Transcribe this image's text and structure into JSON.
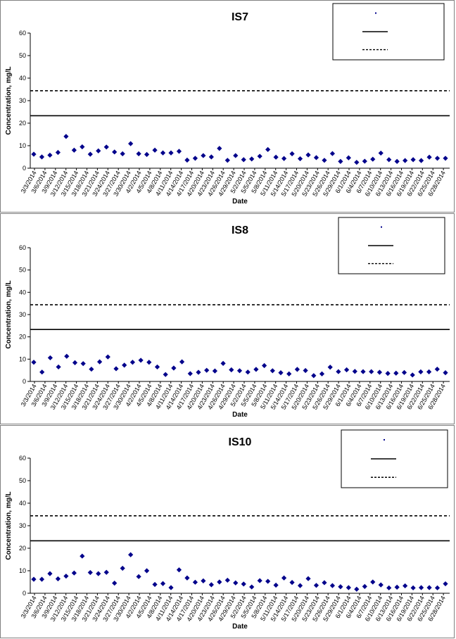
{
  "chart_data": [
    {
      "type": "scatter",
      "title": "IS7",
      "xlabel": "Date",
      "ylabel": "Concentration, mg/L",
      "ylim": [
        0,
        60
      ],
      "yticks": [
        0,
        10,
        20,
        30,
        40,
        50,
        60
      ],
      "xtick_labels": [
        "3/3/2014",
        "3/6/2014",
        "3/9/2014",
        "3/12/2014",
        "3/15/2014",
        "3/18/2014",
        "3/21/2014",
        "3/24/2014",
        "3/27/2014",
        "3/30/2014",
        "4/2/2014",
        "4/5/2014",
        "4/8/2014",
        "4/11/2014",
        "4/14/2014",
        "4/17/2014",
        "4/20/2014",
        "4/23/2014",
        "4/26/2014",
        "4/29/2014",
        "5/2/2014",
        "5/5/2014",
        "5/8/2014",
        "5/11/2014",
        "5/14/2014",
        "5/17/2014",
        "5/20/2014",
        "5/23/2014",
        "5/26/2014",
        "5/29/2014",
        "6/1/2014",
        "6/4/2014",
        "6/7/2014",
        "6/10/2014",
        "6/13/2014",
        "6/16/2014",
        "6/19/2014",
        "6/22/2014",
        "6/25/2014",
        "6/28/2014"
      ],
      "reference_lines": [
        {
          "style": "solid",
          "value": 23.3
        },
        {
          "style": "dashed",
          "value": 34.4
        }
      ],
      "legend": {
        "placement": "top-right",
        "entries": [
          "",
          "",
          ""
        ]
      },
      "series": [
        {
          "marker": "diamond",
          "color": "#00008b",
          "values": [
            6.2,
            5.0,
            5.8,
            7.0,
            14.1,
            8.0,
            9.5,
            6.2,
            7.7,
            9.4,
            7.2,
            6.4,
            10.9,
            6.4,
            6.1,
            8.0,
            6.8,
            6.8,
            7.5,
            3.6,
            4.4,
            5.6,
            5.0,
            8.8,
            3.5,
            5.6,
            3.8,
            4.1,
            5.3,
            8.3,
            4.9,
            4.3,
            6.4,
            4.2,
            5.9,
            4.7,
            3.5,
            6.5,
            3.0,
            4.6,
            2.6,
            3.1,
            4.0,
            6.7,
            3.8,
            3.0,
            3.4,
            3.8,
            3.4,
            4.9,
            4.4,
            4.4
          ]
        }
      ]
    },
    {
      "type": "scatter",
      "title": "IS8",
      "xlabel": "Date",
      "ylabel": "Concentration, mg/L",
      "ylim": [
        0,
        60
      ],
      "yticks": [
        0,
        10,
        20,
        30,
        40,
        50,
        60
      ],
      "xtick_labels": [
        "3/3/2014",
        "3/6/2014",
        "3/9/2014",
        "3/12/2014",
        "3/15/2014",
        "3/18/2014",
        "3/21/2014",
        "3/24/2014",
        "3/27/2014",
        "3/30/2014",
        "4/2/2014",
        "4/5/2014",
        "4/8/2014",
        "4/11/2014",
        "4/14/2014",
        "4/17/2014",
        "4/20/2014",
        "4/23/2014",
        "4/26/2014",
        "4/29/2014",
        "5/2/2014",
        "5/5/2014",
        "5/8/2014",
        "5/11/2014",
        "5/14/2014",
        "5/17/2014",
        "5/20/2014",
        "5/23/2014",
        "5/26/2014",
        "5/29/2014",
        "6/1/2014",
        "6/4/2014",
        "6/7/2014",
        "6/10/2014",
        "6/13/2014",
        "6/16/2014",
        "6/19/2014",
        "6/22/2014",
        "6/25/2014",
        "6/28/2014"
      ],
      "reference_lines": [
        {
          "style": "solid",
          "value": 23.3
        },
        {
          "style": "dashed",
          "value": 34.4
        }
      ],
      "legend": {
        "placement": "top-right",
        "entries": [
          "",
          "",
          ""
        ]
      },
      "series": [
        {
          "marker": "diamond",
          "color": "#00008b",
          "values": [
            8.6,
            4.2,
            10.6,
            6.5,
            11.3,
            8.4,
            8.0,
            5.5,
            8.8,
            11.0,
            5.7,
            7.3,
            8.6,
            9.5,
            8.6,
            6.5,
            3.1,
            6.0,
            8.8,
            3.5,
            4.1,
            5.0,
            4.7,
            8.1,
            5.2,
            4.8,
            4.2,
            5.4,
            7.1,
            4.8,
            3.9,
            3.4,
            5.4,
            4.9,
            2.6,
            3.4,
            6.4,
            4.4,
            5.2,
            4.5,
            4.4,
            4.4,
            4.1,
            3.6,
            3.7,
            4.0,
            2.9,
            4.3,
            4.3,
            5.5,
            3.9
          ]
        }
      ]
    },
    {
      "type": "scatter",
      "title": "IS10",
      "xlabel": "Date",
      "ylabel": "Concentration, mg/L",
      "ylim": [
        0,
        60
      ],
      "yticks": [
        0,
        10,
        20,
        30,
        40,
        50,
        60
      ],
      "xtick_labels": [
        "3/3/2014",
        "3/6/2014",
        "3/9/2014",
        "3/12/2014",
        "3/15/2014",
        "3/18/2014",
        "3/21/2014",
        "3/24/2014",
        "3/27/2014",
        "3/30/2014",
        "4/2/2014",
        "4/5/2014",
        "4/8/2014",
        "4/11/2014",
        "4/14/2014",
        "4/17/2014",
        "4/20/2014",
        "4/23/2014",
        "4/26/2014",
        "4/29/2014",
        "5/2/2014",
        "5/5/2014",
        "5/8/2014",
        "5/11/2014",
        "5/14/2014",
        "5/17/2014",
        "5/20/2014",
        "5/23/2014",
        "5/26/2014",
        "5/29/2014",
        "6/1/2014",
        "6/4/2014",
        "6/7/2014",
        "6/10/2014",
        "6/13/2014",
        "6/16/2014",
        "6/19/2014",
        "6/22/2014",
        "6/25/2014",
        "6/28/2014"
      ],
      "reference_lines": [
        {
          "style": "solid",
          "value": 23.3
        },
        {
          "style": "dashed",
          "value": 34.4
        }
      ],
      "legend": {
        "placement": "top-right",
        "entries": [
          "",
          "",
          ""
        ]
      },
      "series": [
        {
          "marker": "diamond",
          "color": "#00008b",
          "values": [
            6.2,
            6.2,
            8.7,
            6.4,
            7.6,
            9.0,
            16.5,
            9.2,
            8.7,
            9.3,
            4.5,
            11.1,
            17.1,
            7.4,
            10.0,
            3.9,
            4.3,
            2.5,
            10.4,
            6.8,
            4.9,
            5.5,
            3.8,
            5.0,
            5.8,
            4.6,
            4.1,
            2.8,
            5.6,
            5.3,
            3.6,
            6.8,
            4.8,
            3.4,
            6.5,
            3.5,
            4.7,
            3.4,
            2.9,
            2.5,
            1.8,
            3.0,
            5.0,
            3.7,
            2.4,
            2.7,
            3.3,
            2.4,
            2.5,
            2.5,
            2.4,
            4.2
          ]
        }
      ]
    }
  ]
}
